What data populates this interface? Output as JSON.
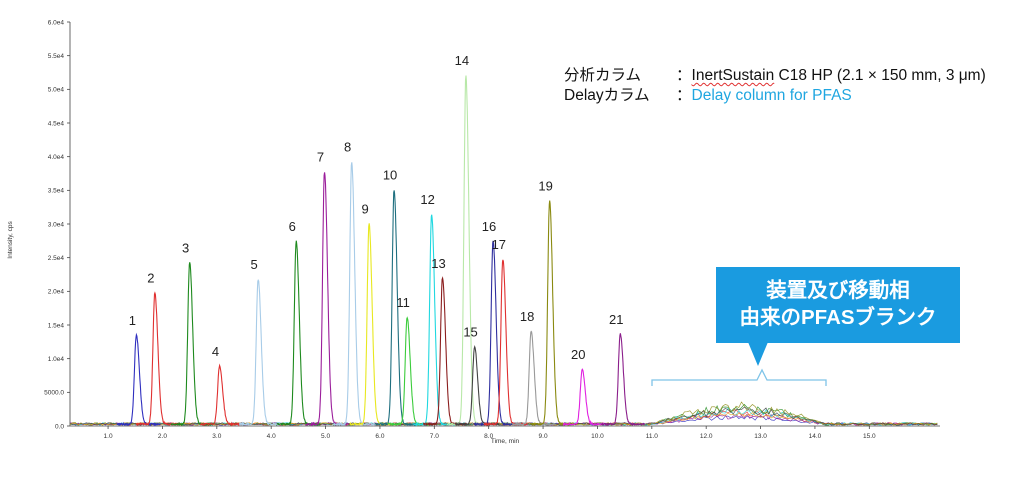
{
  "chart_data": {
    "type": "line",
    "xlabel": "Time, min",
    "ylabel": "Intensity, cps",
    "xlim": [
      0.3,
      16.3
    ],
    "ylim": [
      0,
      60000
    ],
    "x_ticks": [
      "1.0",
      "2.0",
      "3.0",
      "4.0",
      "5.0",
      "6.0",
      "7.0",
      "8.0",
      "9.0",
      "10.0",
      "11.0",
      "12.0",
      "13.0",
      "14.0",
      "15.0"
    ],
    "y_ticks": [
      "0.0",
      "5000.0",
      "1.0e4",
      "1.5e4",
      "2.0e4",
      "2.5e4",
      "3.0e4",
      "3.5e4",
      "4.0e4",
      "4.5e4",
      "5.0e4",
      "5.5e4",
      "6.0e4"
    ],
    "peaks": [
      {
        "label": "1",
        "time": 1.52,
        "height": 13200,
        "color": "#2f2fbf"
      },
      {
        "label": "2",
        "time": 1.86,
        "height": 19500,
        "color": "#e03030"
      },
      {
        "label": "3",
        "time": 2.5,
        "height": 24000,
        "color": "#1e8a1e"
      },
      {
        "label": "4",
        "time": 3.05,
        "height": 8600,
        "color": "#e03030"
      },
      {
        "label": "5",
        "time": 3.76,
        "height": 21500,
        "color": "#a8cce8"
      },
      {
        "label": "6",
        "time": 4.46,
        "height": 27200,
        "color": "#1e8a1e"
      },
      {
        "label": "7",
        "time": 4.98,
        "height": 37500,
        "color": "#9b1e9b"
      },
      {
        "label": "8",
        "time": 5.48,
        "height": 39000,
        "color": "#a8cce8"
      },
      {
        "label": "9",
        "time": 5.8,
        "height": 29800,
        "color": "#e8e820"
      },
      {
        "label": "10",
        "time": 6.26,
        "height": 34800,
        "color": "#1f6f7f"
      },
      {
        "label": "11",
        "time": 6.5,
        "height": 15900,
        "color": "#3ccc3c"
      },
      {
        "label": "12",
        "time": 6.95,
        "height": 31200,
        "color": "#20d8e0"
      },
      {
        "label": "13",
        "time": 7.15,
        "height": 21700,
        "color": "#8b1e1e"
      },
      {
        "label": "14",
        "time": 7.58,
        "height": 51800,
        "color": "#b8e8a8"
      },
      {
        "label": "15",
        "time": 7.74,
        "height": 11500,
        "color": "#444444"
      },
      {
        "label": "16",
        "time": 8.08,
        "height": 27200,
        "color": "#2f2f9f"
      },
      {
        "label": "17",
        "time": 8.26,
        "height": 24500,
        "color": "#e03030"
      },
      {
        "label": "18",
        "time": 8.78,
        "height": 13800,
        "color": "#999999"
      },
      {
        "label": "19",
        "time": 9.12,
        "height": 33200,
        "color": "#8a8a10"
      },
      {
        "label": "20",
        "time": 9.72,
        "height": 8200,
        "color": "#e020e0"
      },
      {
        "label": "21",
        "time": 10.42,
        "height": 13400,
        "color": "#8b1e8b"
      }
    ],
    "blank_hump": {
      "start": 11.0,
      "end": 14.2,
      "max_height": 3500,
      "colors": [
        "#2f2fbf",
        "#e03030",
        "#1e8a1e",
        "#9b1e9b",
        "#20d8e0",
        "#8a8a10",
        "#e8a020",
        "#444444"
      ]
    }
  },
  "info": {
    "row1_key": "分析カラム",
    "row1_sep": "：",
    "row1_brand": "InertSustain",
    "row1_rest": " C18 HP (2.1 × 150 mm, 3 μm)",
    "row2_key": "Delayカラム",
    "row2_sep": "：",
    "row2_value": "Delay column for PFAS"
  },
  "callout": {
    "line1": "装置及び移動相",
    "line2": "由来のPFASブランク",
    "color": "#1a9be0"
  }
}
